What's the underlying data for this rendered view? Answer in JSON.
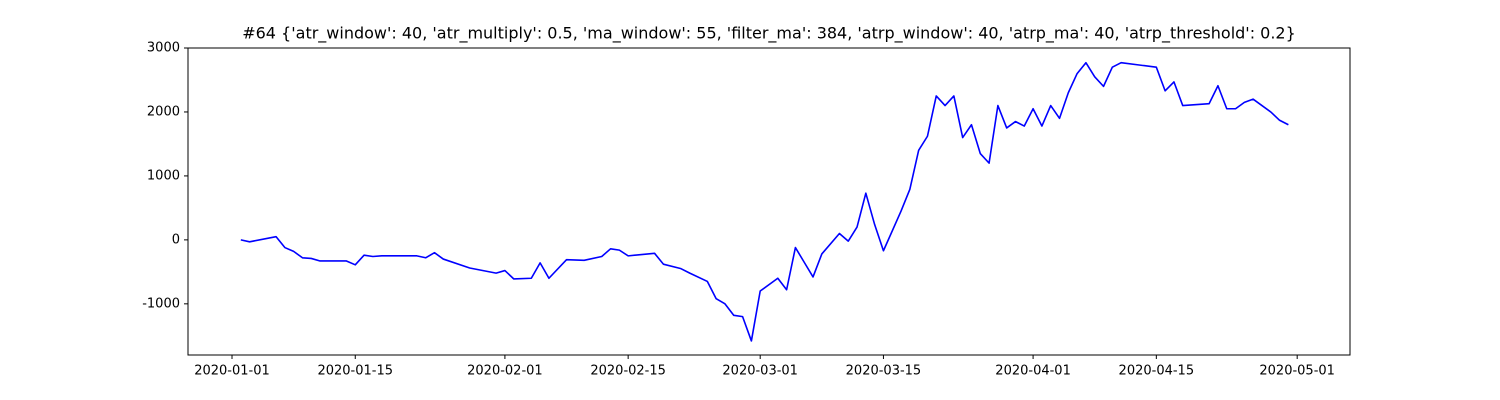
{
  "chart_data": {
    "type": "line",
    "title": "#64 {'atr_window': 40, 'atr_multiply': 0.5, 'ma_window': 55, 'filter_ma': 384, 'atrp_window': 40, 'atrp_ma': 40, 'atrp_threshold': 0.2}",
    "x": [
      "2020-01-02",
      "2020-01-03",
      "2020-01-06",
      "2020-01-07",
      "2020-01-08",
      "2020-01-09",
      "2020-01-10",
      "2020-01-11",
      "2020-01-14",
      "2020-01-15",
      "2020-01-16",
      "2020-01-17",
      "2020-01-18",
      "2020-01-22",
      "2020-01-23",
      "2020-01-24",
      "2020-01-25",
      "2020-01-28",
      "2020-01-31",
      "2020-02-01",
      "2020-02-02",
      "2020-02-04",
      "2020-02-05",
      "2020-02-06",
      "2020-02-08",
      "2020-02-10",
      "2020-02-12",
      "2020-02-13",
      "2020-02-14",
      "2020-02-15",
      "2020-02-18",
      "2020-02-19",
      "2020-02-21",
      "2020-02-22",
      "2020-02-24",
      "2020-02-25",
      "2020-02-26",
      "2020-02-27",
      "2020-02-28",
      "2020-02-29",
      "2020-03-01",
      "2020-03-03",
      "2020-03-04",
      "2020-03-05",
      "2020-03-06",
      "2020-03-07",
      "2020-03-08",
      "2020-03-10",
      "2020-03-11",
      "2020-03-12",
      "2020-03-13",
      "2020-03-14",
      "2020-03-15",
      "2020-03-17",
      "2020-03-18",
      "2020-03-19",
      "2020-03-20",
      "2020-03-21",
      "2020-03-22",
      "2020-03-23",
      "2020-03-24",
      "2020-03-25",
      "2020-03-26",
      "2020-03-27",
      "2020-03-28",
      "2020-03-29",
      "2020-03-30",
      "2020-03-31",
      "2020-04-01",
      "2020-04-02",
      "2020-04-03",
      "2020-04-04",
      "2020-04-05",
      "2020-04-06",
      "2020-04-07",
      "2020-04-08",
      "2020-04-09",
      "2020-04-10",
      "2020-04-11",
      "2020-04-15",
      "2020-04-16",
      "2020-04-17",
      "2020-04-18",
      "2020-04-21",
      "2020-04-22",
      "2020-04-23",
      "2020-04-24",
      "2020-04-25",
      "2020-04-26",
      "2020-04-28",
      "2020-04-29",
      "2020-04-30"
    ],
    "series": [
      {
        "color": "#0000ff",
        "values": [
          0,
          -30,
          50,
          -120,
          -180,
          -280,
          -290,
          -330,
          -330,
          -390,
          -240,
          -260,
          -250,
          -250,
          -280,
          -200,
          -300,
          -440,
          -520,
          -480,
          -610,
          -600,
          -360,
          -600,
          -310,
          -320,
          -260,
          -140,
          -160,
          -250,
          -210,
          -380,
          -450,
          -520,
          -650,
          -920,
          -1000,
          -1180,
          -1200,
          -1580,
          -800,
          -600,
          -780,
          -120,
          -350,
          -580,
          -220,
          100,
          -20,
          200,
          730,
          240,
          -170,
          450,
          790,
          1400,
          1620,
          2250,
          2100,
          2250,
          1600,
          1800,
          1350,
          1200,
          2100,
          1750,
          1850,
          1780,
          2050,
          1780,
          2100,
          1900,
          2300,
          2600,
          2770,
          2550,
          2400,
          2700,
          2770,
          2700,
          2330,
          2470,
          2100,
          2130,
          2410,
          2050,
          2050,
          2150,
          2200,
          2000,
          1870,
          1800
        ]
      }
    ],
    "xlim": [
      "2019-12-27",
      "2020-05-07"
    ],
    "xticks": [
      "2020-01-01",
      "2020-01-15",
      "2020-02-01",
      "2020-02-15",
      "2020-03-01",
      "2020-03-15",
      "2020-04-01",
      "2020-04-15",
      "2020-05-01"
    ],
    "ylim": [
      -1800,
      3000
    ],
    "yticks": [
      -1000,
      0,
      1000,
      2000,
      3000
    ]
  }
}
